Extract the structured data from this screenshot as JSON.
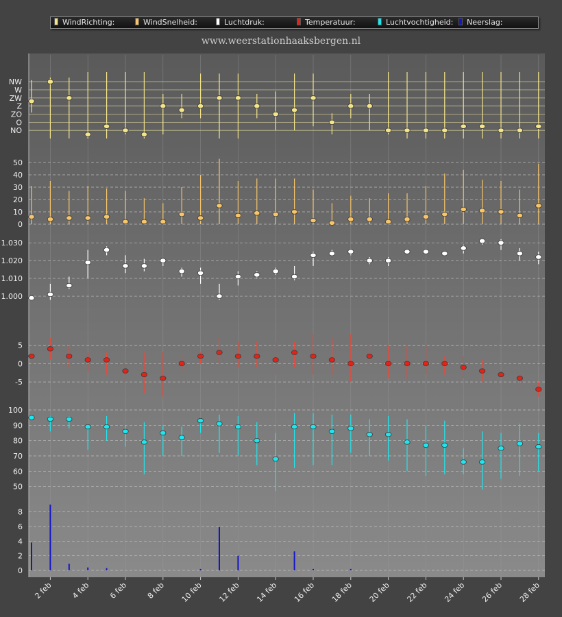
{
  "legend": [
    {
      "label": "WindRichting:",
      "color": "#f5e58a"
    },
    {
      "label": "WindSnelheid:",
      "color": "#f7c56a"
    },
    {
      "label": "Luchtdruk:",
      "color": "#ffffff"
    },
    {
      "label": "Temperatuur:",
      "color": "#e42318"
    },
    {
      "label": "Luchtvochtigheid:",
      "color": "#1fe6ee"
    },
    {
      "label": "Neerslag:",
      "color": "#1515c8"
    }
  ],
  "subtitle": "www.weerstationhaaksbergen.nl",
  "chart_data": [
    {
      "type": "scatter",
      "name": "WindRichting",
      "x_labels": [
        "2 feb",
        "4 feb",
        "6 feb",
        "8 feb",
        "10 feb",
        "12 feb",
        "14 feb",
        "16 feb",
        "18 feb",
        "20 feb",
        "22 feb",
        "24 feb",
        "26 feb",
        "28 feb"
      ],
      "y_ticks": [
        "NW",
        "W",
        "ZW",
        "Z",
        "ZO",
        "O",
        "NO"
      ],
      "values": [
        3.6,
        6,
        4,
        -0.5,
        0.5,
        0,
        -0.5,
        3,
        2.5,
        3,
        4,
        4,
        3,
        2,
        2.5,
        4,
        1,
        3,
        3,
        0,
        0,
        0,
        0,
        0.5,
        0.5,
        0,
        0,
        0.5
      ],
      "highs": [
        6.2,
        6.5,
        6.5,
        7.2,
        7.2,
        7.2,
        7.2,
        4.5,
        4.5,
        7,
        7,
        7,
        4.5,
        4.8,
        7,
        7,
        2.1,
        4.5,
        4.5,
        7.2,
        7.2,
        7.2,
        7.2,
        7.2,
        7.2,
        7.2,
        7.2,
        7.2
      ],
      "lows": [
        2.2,
        -1,
        -1,
        -1,
        -1,
        -0.5,
        -1,
        -0.5,
        1.5,
        1.5,
        -1,
        -1,
        1.5,
        0,
        0,
        0.5,
        -0.5,
        1.5,
        0,
        -0.5,
        -1,
        -1,
        -1,
        -1,
        -1,
        -1,
        -1,
        -1
      ]
    },
    {
      "type": "scatter",
      "name": "WindSnelheid",
      "ylim": [
        0,
        50
      ],
      "y_ticks": [
        0,
        10,
        20,
        30,
        40,
        50
      ],
      "values": [
        6,
        4,
        5,
        5,
        6,
        2,
        2,
        2,
        8,
        5,
        15,
        7,
        9,
        8,
        10,
        3,
        1,
        4,
        4,
        2,
        4,
        6,
        8,
        12,
        11,
        10,
        7,
        15
      ],
      "highs": [
        31,
        35,
        27,
        31,
        29,
        27,
        21,
        17,
        30,
        40,
        53,
        35,
        37,
        37,
        37,
        28,
        17,
        23,
        21,
        25,
        25,
        31,
        41,
        44,
        36,
        35,
        28,
        49
      ],
      "lows": [
        0,
        0,
        0,
        0,
        0,
        0,
        0,
        0,
        0,
        0,
        0,
        0,
        0,
        0,
        0,
        0,
        0,
        0,
        0,
        0,
        0,
        0,
        0,
        0,
        0,
        0,
        0,
        0
      ]
    },
    {
      "type": "scatter",
      "name": "Luchtdruk",
      "ylim": [
        0.99,
        1.037
      ],
      "y_ticks": [
        "1.000",
        "1.010",
        "1.020",
        "1.030"
      ],
      "values": [
        0.999,
        1.001,
        1.006,
        1.019,
        1.026,
        1.017,
        1.017,
        1.02,
        1.014,
        1.013,
        1.0,
        1.011,
        1.012,
        1.014,
        1.011,
        1.023,
        1.024,
        1.025,
        1.02,
        1.02,
        1.025,
        1.025,
        1.024,
        1.027,
        1.031,
        1.03,
        1.024,
        1.022
      ],
      "highs": [
        1.0,
        1.007,
        1.011,
        1.026,
        1.028,
        1.023,
        1.021,
        1.021,
        1.016,
        1.016,
        1.007,
        1.014,
        1.014,
        1.016,
        1.017,
        1.025,
        1.026,
        1.026,
        1.022,
        1.022,
        1.026,
        1.026,
        1.025,
        1.029,
        1.032,
        1.032,
        1.027,
        1.025
      ],
      "lows": [
        0.998,
        0.998,
        1.004,
        1.01,
        1.023,
        1.013,
        1.014,
        1.017,
        1.011,
        1.007,
        0.998,
        1.006,
        1.01,
        1.012,
        1.009,
        1.017,
        1.023,
        1.023,
        1.018,
        1.017,
        1.024,
        1.024,
        1.023,
        1.024,
        1.029,
        1.026,
        1.02,
        1.018
      ]
    },
    {
      "type": "scatter",
      "name": "Temperatuur",
      "ylim": [
        -10,
        9
      ],
      "y_ticks": [
        -5,
        0,
        5
      ],
      "values": [
        2,
        4,
        2,
        1,
        1,
        -2,
        -3,
        -4,
        0,
        2,
        3,
        2,
        2,
        1,
        3,
        2,
        1,
        0,
        2,
        0,
        0,
        0,
        0,
        -1,
        -2,
        -3,
        -4,
        -7
      ],
      "highs": [
        3,
        7,
        5,
        3,
        3,
        0,
        3,
        3,
        2,
        3,
        7,
        6,
        6,
        6,
        6,
        8,
        7,
        8,
        5,
        5,
        5,
        5,
        2,
        2,
        1,
        -2,
        -2,
        -5
      ],
      "lows": [
        0,
        1,
        -1,
        -2,
        -3,
        -5,
        -8,
        -9,
        -2,
        0,
        0,
        -1,
        -1,
        -3,
        -1,
        -3,
        -3,
        -5,
        0,
        -4,
        -4,
        -3,
        -3,
        -4,
        -5,
        -3,
        -7,
        -9
      ]
    },
    {
      "type": "scatter",
      "name": "Luchtvochtigheid",
      "ylim": [
        40,
        100
      ],
      "y_ticks": [
        50,
        60,
        70,
        80,
        90,
        100
      ],
      "values": [
        95,
        94,
        94,
        89,
        89,
        86,
        79,
        85,
        82,
        93,
        91,
        89,
        80,
        68,
        89,
        89,
        86,
        88,
        84,
        84,
        79,
        77,
        77,
        66,
        66,
        75,
        78,
        76
      ],
      "highs": [
        96,
        96,
        96,
        90,
        96,
        90,
        92,
        90,
        89,
        94,
        97,
        96,
        92,
        85,
        98,
        98,
        97,
        97,
        94,
        96,
        94,
        90,
        93,
        75,
        86,
        85,
        91,
        85
      ],
      "lows": [
        94,
        86,
        88,
        74,
        80,
        76,
        58,
        70,
        70,
        85,
        72,
        70,
        64,
        47,
        62,
        64,
        64,
        72,
        70,
        67,
        60,
        57,
        58,
        58,
        48,
        55,
        57,
        60
      ]
    },
    {
      "type": "bar",
      "name": "Neerslag",
      "ylim": [
        0,
        9
      ],
      "y_ticks": [
        0,
        2,
        4,
        6,
        8
      ],
      "values": [
        3.8,
        9,
        0.9,
        0.4,
        0.3,
        0,
        0,
        0,
        0,
        0.2,
        5.9,
        2,
        0,
        0,
        2.6,
        0.2,
        0,
        0.2,
        0,
        0,
        0,
        0,
        0,
        0,
        0,
        0,
        0,
        0
      ]
    }
  ]
}
